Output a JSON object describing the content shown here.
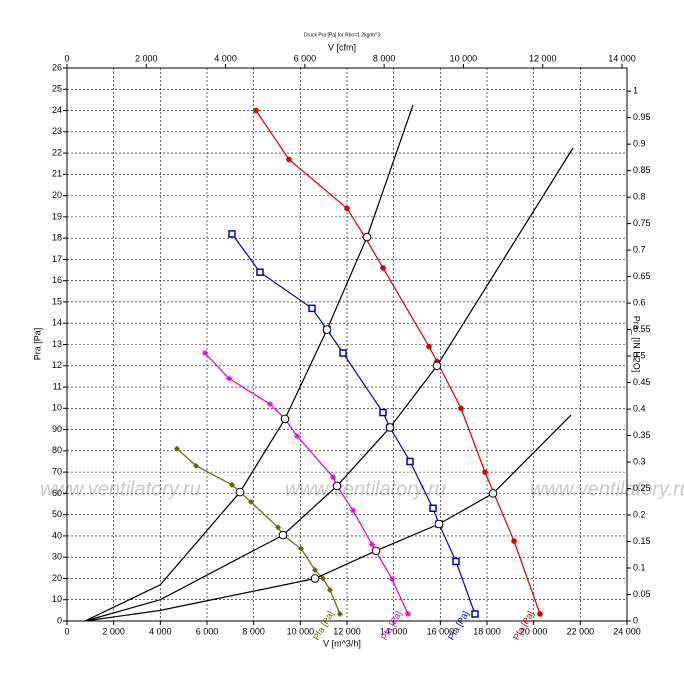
{
  "chart_data": {
    "type": "line",
    "title": "Druck Pra [Pa] for Rho=1.2kg/m^3",
    "x_label": "V [m^3/h]",
    "x2_label": "V [cfm]",
    "y_label": "Pra [Pa]",
    "y2_label": "Pra_ [IN H2O]",
    "watermark": "www.ventilatory.ru",
    "xlim": [
      0,
      24000
    ],
    "xticks": [
      0,
      {
        "value": 2000,
        "label": "2 000"
      },
      {
        "value": 4000,
        "label": "4 000"
      },
      {
        "value": 6000,
        "label": "6 000"
      },
      {
        "value": 8000,
        "label": "8 000"
      },
      {
        "value": 10000,
        "label": "10 000"
      },
      {
        "value": 12000,
        "label": "12 000"
      },
      {
        "value": 14000,
        "label": "14 000"
      },
      {
        "value": 16000,
        "label": "16 000"
      },
      {
        "value": 18000,
        "label": "18 000"
      },
      {
        "value": 20000,
        "label": "20 000"
      },
      {
        "value": 22000,
        "label": "22 000"
      },
      {
        "value": 24000,
        "label": "24 000"
      }
    ],
    "x2lim": [
      0,
      14126
    ],
    "x2ticks": [
      0,
      {
        "value": 2000,
        "label": "2 000"
      },
      {
        "value": 4000,
        "label": "4 000"
      },
      {
        "value": 6000,
        "label": "6 000"
      },
      {
        "value": 8000,
        "label": "8 000"
      },
      {
        "value": 10000,
        "label": "10 000"
      },
      {
        "value": 12000,
        "label": "12 000"
      },
      {
        "value": 14000,
        "label": "14 000"
      }
    ],
    "ylim": [
      0,
      260
    ],
    "yticks": [
      0,
      10,
      20,
      30,
      40,
      50,
      60,
      70,
      80,
      90,
      {
        "value": 100,
        "label": "10"
      },
      {
        "value": 110,
        "label": "11"
      },
      {
        "value": 120,
        "label": "12"
      },
      {
        "value": 130,
        "label": "13"
      },
      {
        "value": 140,
        "label": "14"
      },
      {
        "value": 150,
        "label": "15"
      },
      {
        "value": 160,
        "label": "16"
      },
      {
        "value": 170,
        "label": "17"
      },
      {
        "value": 180,
        "label": "18"
      },
      {
        "value": 190,
        "label": "19"
      },
      {
        "value": 200,
        "label": "20"
      },
      {
        "value": 210,
        "label": "21"
      },
      {
        "value": 220,
        "label": "22"
      },
      {
        "value": 230,
        "label": "23"
      },
      {
        "value": 240,
        "label": "24"
      },
      {
        "value": 250,
        "label": "25"
      },
      {
        "value": 260,
        "label": "26"
      }
    ],
    "y2lim": [
      0,
      1.0437
    ],
    "y2ticks": [
      0,
      0.05,
      0.1,
      0.15,
      0.2,
      0.25,
      0.3,
      0.35,
      0.4,
      0.45,
      0.5,
      0.55,
      0.6,
      0.65,
      0.7,
      0.75,
      0.8,
      0.85,
      0.9,
      0.95,
      1
    ],
    "grid": true,
    "series": [
      {
        "name": "Pfa [Pa]",
        "color": "#dd0000",
        "marker": "circle",
        "x": [
          8100,
          9514,
          12000,
          12771,
          13543,
          15514,
          15857,
          16886,
          17914,
          19157,
          20271
        ],
        "values": [
          240,
          217,
          194,
          180.5,
          166,
          129,
          122,
          100,
          70,
          37.6,
          3.3
        ]
      },
      {
        "name": "Pfa [Pa]",
        "color": "#0000bb",
        "marker": "square",
        "x": [
          7071,
          8271,
          10500,
          11143,
          11829,
          13543,
          13843,
          14700,
          15686,
          15943,
          16671,
          17486
        ],
        "values": [
          182,
          164,
          147,
          137,
          126,
          98,
          91,
          75,
          53,
          45.6,
          28,
          3.3
        ]
      },
      {
        "name": "Pfa [Pa]",
        "color": "#dd00dd",
        "marker": "star",
        "x": [
          5914,
          6943,
          8700,
          9343,
          9857,
          11400,
          11571,
          12257,
          13071,
          13929,
          14614
        ],
        "values": [
          126,
          114,
          102,
          95,
          87,
          67.7,
          63.5,
          52,
          36,
          19.7,
          3.3
        ]
      },
      {
        "name": "Pfa [Pa]",
        "color": "#666600",
        "marker": "diamond",
        "x": [
          4714,
          5529,
          7071,
          7414,
          7886,
          9043,
          9257,
          10029,
          10629,
          10971,
          11271,
          11700
        ],
        "values": [
          81,
          73,
          64,
          60.6,
          56,
          44,
          40.4,
          34,
          24,
          20,
          14.6,
          3.3
        ]
      },
      {
        "color": "#000000",
        "marker": "open",
        "x": [
          771,
          4000,
          7414,
          9343,
          11143,
          12857,
          14829
        ],
        "values": [
          0,
          17,
          60.6,
          95,
          137,
          180.5,
          242.6
        ]
      },
      {
        "color": "#000000",
        "marker": "open",
        "x": [
          771,
          4000,
          9257,
          11571,
          13843,
          15857,
          21686
        ],
        "values": [
          0,
          10,
          40.4,
          63.5,
          91,
          120,
          222.4
        ]
      },
      {
        "color": "#000000",
        "marker": "open",
        "x": [
          771,
          4000,
          10629,
          13243,
          15943,
          18257,
          21600
        ],
        "values": [
          0,
          5,
          20,
          33,
          45.6,
          60,
          96.8
        ]
      }
    ]
  }
}
